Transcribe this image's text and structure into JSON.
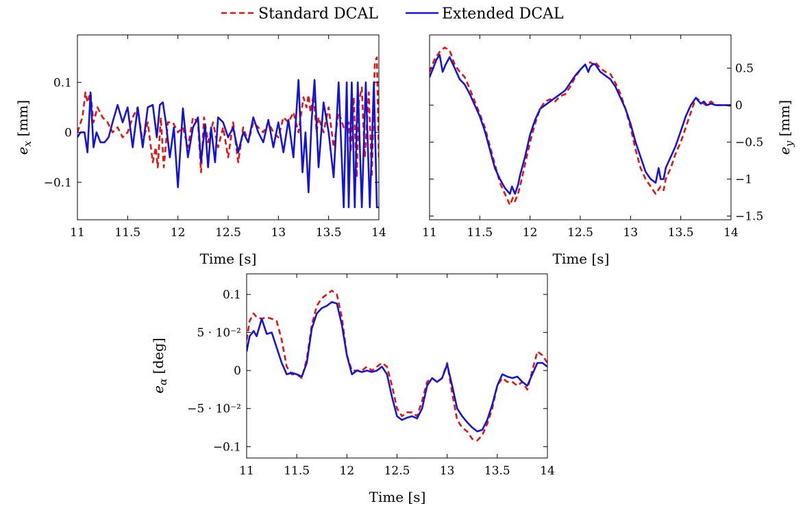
{
  "legend": {
    "entries": [
      {
        "label": "Standard DCAL",
        "color": "#e8120c",
        "dash": true
      },
      {
        "label": "Extended DCAL",
        "color": "#1414d8",
        "dash": false
      }
    ]
  },
  "chart_data": [
    {
      "type": "line",
      "id": "ex",
      "xlabel": "Time [s]",
      "ylabel_main": "e",
      "ylabel_sub": "x",
      "ylabel_unit": "[mm]",
      "xlim": [
        11,
        14
      ],
      "ylim": [
        -0.175,
        0.195
      ],
      "xticks": [
        11,
        11.5,
        12,
        12.5,
        13,
        13.5,
        14
      ],
      "xtick_labels": [
        "11",
        "11.5",
        "12",
        "12.5",
        "13",
        "13.5",
        "14"
      ],
      "yticks": [
        -0.1,
        0,
        0.1
      ],
      "ytick_labels": [
        "−0.1",
        "0",
        "0.1"
      ],
      "grid": false,
      "series": [
        {
          "name": "Standard DCAL",
          "color": "#e8120c",
          "dash": true,
          "x": [
            11,
            11.05,
            11.08,
            11.1,
            11.13,
            11.16,
            11.2,
            11.25,
            11.3,
            11.35,
            11.4,
            11.45,
            11.5,
            11.55,
            11.6,
            11.65,
            11.7,
            11.75,
            11.78,
            11.8,
            11.83,
            11.86,
            11.9,
            11.95,
            12,
            12.05,
            12.1,
            12.15,
            12.2,
            12.23,
            12.26,
            12.3,
            12.35,
            12.4,
            12.45,
            12.5,
            12.55,
            12.6,
            12.65,
            12.7,
            12.75,
            12.8,
            12.85,
            12.9,
            12.95,
            13,
            13.05,
            13.1,
            13.15,
            13.2,
            13.25,
            13.28,
            13.3,
            13.32,
            13.35,
            13.38,
            13.4,
            13.45,
            13.5,
            13.55,
            13.6,
            13.65,
            13.7,
            13.72,
            13.75,
            13.78,
            13.8,
            13.83,
            13.86,
            13.9,
            13.93,
            13.96,
            13.98,
            14
          ],
          "y": [
            0.0,
            0.03,
            0.08,
            0.06,
            0.08,
            0.02,
            0.05,
            0.03,
            0.02,
            0.0,
            0.01,
            -0.01,
            0.0,
            0.03,
            0.05,
            -0.02,
            0.02,
            -0.06,
            -0.03,
            -0.07,
            0.03,
            -0.07,
            0.02,
            0.02,
            0.0,
            0.01,
            -0.03,
            0.03,
            0.02,
            -0.08,
            0.03,
            -0.02,
            0.02,
            -0.03,
            0.01,
            -0.05,
            0.02,
            -0.06,
            0.01,
            -0.02,
            0.02,
            0.01,
            0.0,
            0.02,
            0.0,
            -0.01,
            0.03,
            0.02,
            0.04,
            0.0,
            0.07,
            0.05,
            0.075,
            0.04,
            0.075,
            0.0,
            0.03,
            0.0,
            0.05,
            -0.03,
            0.04,
            0.01,
            0.02,
            -0.04,
            0.07,
            -0.09,
            0.06,
            0.09,
            -0.05,
            0.08,
            -0.09,
            0.14,
            0.15,
            -0.05
          ]
        },
        {
          "name": "Extended DCAL",
          "color": "#1414d8",
          "dash": false,
          "x": [
            11,
            11.03,
            11.07,
            11.1,
            11.13,
            11.16,
            11.19,
            11.23,
            11.27,
            11.31,
            11.35,
            11.4,
            11.45,
            11.5,
            11.55,
            11.6,
            11.65,
            11.7,
            11.75,
            11.79,
            11.82,
            11.85,
            11.88,
            11.92,
            11.96,
            12,
            12.05,
            12.1,
            12.15,
            12.2,
            12.23,
            12.27,
            12.3,
            12.33,
            12.37,
            12.4,
            12.45,
            12.5,
            12.55,
            12.6,
            12.65,
            12.7,
            12.75,
            12.8,
            12.85,
            12.9,
            12.95,
            13,
            13.05,
            13.1,
            13.15,
            13.2,
            13.24,
            13.27,
            13.3,
            13.33,
            13.36,
            13.4,
            13.45,
            13.5,
            13.55,
            13.6,
            13.65,
            13.68,
            13.7,
            13.73,
            13.76,
            13.79,
            13.83,
            13.87,
            13.91,
            13.95,
            13.98,
            14
          ],
          "y": [
            -0.01,
            0.0,
            0.0,
            -0.04,
            0.08,
            -0.03,
            0.0,
            -0.02,
            -0.02,
            -0.01,
            0.02,
            0.055,
            0.02,
            0.05,
            -0.03,
            0.05,
            -0.03,
            0.05,
            0.055,
            -0.01,
            0.055,
            0.06,
            0.02,
            -0.05,
            0.01,
            -0.11,
            0.048,
            -0.05,
            0.01,
            0.03,
            -0.06,
            0.015,
            -0.07,
            0.01,
            -0.06,
            0.03,
            0.02,
            -0.01,
            0.01,
            -0.04,
            0.0,
            -0.02,
            0.03,
            0.0,
            -0.02,
            0.025,
            -0.03,
            0.02,
            -0.04,
            0.025,
            -0.05,
            0.105,
            -0.08,
            0.0,
            -0.12,
            0.02,
            0.105,
            -0.07,
            0.06,
            0.0,
            -0.09,
            0.1,
            -0.15,
            0.1,
            -0.15,
            0.1,
            -0.15,
            0.1,
            -0.15,
            0.1,
            -0.15,
            0.1,
            -0.15,
            -0.15
          ]
        }
      ]
    },
    {
      "type": "line",
      "id": "ey",
      "xlabel": "Time [s]",
      "ylabel_main": "e",
      "ylabel_sub": "y",
      "ylabel_unit": "[mm]",
      "xlim": [
        11,
        14
      ],
      "ylim": [
        -1.55,
        0.95
      ],
      "xticks": [
        11,
        11.5,
        12,
        12.5,
        13,
        13.5,
        14
      ],
      "xtick_labels": [
        "11",
        "11.5",
        "12",
        "12.5",
        "13",
        "13.5",
        "14"
      ],
      "yticks": [
        -1.5,
        -1,
        -0.5,
        0,
        0.5
      ],
      "ytick_labels": [
        "−1.5",
        "−1",
        "−0.5",
        "0",
        "0.5"
      ],
      "grid": false,
      "series": [
        {
          "name": "Standard DCAL",
          "color": "#e8120c",
          "dash": true,
          "x": [
            11,
            11.05,
            11.1,
            11.15,
            11.2,
            11.25,
            11.3,
            11.35,
            11.4,
            11.45,
            11.5,
            11.55,
            11.6,
            11.65,
            11.7,
            11.75,
            11.8,
            11.83,
            11.85,
            11.88,
            11.9,
            11.95,
            12,
            12.05,
            12.1,
            12.15,
            12.2,
            12.25,
            12.3,
            12.35,
            12.4,
            12.45,
            12.5,
            12.55,
            12.6,
            12.63,
            12.65,
            12.7,
            12.75,
            12.8,
            12.85,
            12.9,
            12.95,
            13,
            13.05,
            13.1,
            13.15,
            13.2,
            13.25,
            13.3,
            13.33,
            13.35,
            13.4,
            13.45,
            13.5,
            13.55,
            13.6,
            13.65,
            13.7,
            13.75,
            13.8,
            13.85,
            13.9,
            13.95,
            14
          ],
          "y": [
            0.45,
            0.62,
            0.72,
            0.78,
            0.74,
            0.55,
            0.45,
            0.38,
            0.22,
            0.05,
            -0.12,
            -0.3,
            -0.55,
            -0.8,
            -1.05,
            -1.2,
            -1.35,
            -1.25,
            -1.3,
            -1.2,
            -1.1,
            -0.8,
            -0.5,
            -0.25,
            -0.05,
            0.05,
            0.08,
            0.05,
            0.12,
            0.15,
            0.25,
            0.38,
            0.48,
            0.55,
            0.58,
            0.55,
            0.58,
            0.5,
            0.45,
            0.42,
            0.3,
            0.15,
            -0.05,
            -0.3,
            -0.6,
            -0.85,
            -1.0,
            -1.1,
            -1.2,
            -1.1,
            -1.15,
            -1.0,
            -0.85,
            -0.65,
            -0.5,
            -0.3,
            -0.1,
            0.1,
            0.05,
            0.0,
            0.05,
            0.0,
            0.0,
            0.0,
            -0.01
          ]
        },
        {
          "name": "Extended DCAL",
          "color": "#1414d8",
          "dash": false,
          "x": [
            11,
            11.03,
            11.07,
            11.1,
            11.13,
            11.16,
            11.2,
            11.25,
            11.3,
            11.35,
            11.4,
            11.45,
            11.5,
            11.55,
            11.6,
            11.65,
            11.7,
            11.75,
            11.8,
            11.82,
            11.85,
            11.88,
            11.9,
            11.95,
            12,
            12.05,
            12.1,
            12.15,
            12.2,
            12.25,
            12.3,
            12.35,
            12.4,
            12.45,
            12.5,
            12.55,
            12.58,
            12.6,
            12.63,
            12.65,
            12.7,
            12.75,
            12.8,
            12.85,
            12.9,
            12.95,
            13,
            13.05,
            13.1,
            13.15,
            13.2,
            13.25,
            13.28,
            13.3,
            13.33,
            13.35,
            13.4,
            13.45,
            13.5,
            13.55,
            13.6,
            13.65,
            13.68,
            13.7,
            13.73,
            13.76,
            13.8,
            13.85,
            13.9,
            13.95,
            14
          ],
          "y": [
            0.38,
            0.48,
            0.62,
            0.68,
            0.45,
            0.55,
            0.65,
            0.5,
            0.35,
            0.28,
            0.15,
            0.0,
            -0.15,
            -0.35,
            -0.6,
            -0.85,
            -1.0,
            -1.12,
            -1.2,
            -1.1,
            -1.2,
            -1.08,
            -0.95,
            -0.7,
            -0.4,
            -0.2,
            -0.05,
            0.0,
            0.05,
            0.1,
            0.15,
            0.2,
            0.3,
            0.4,
            0.48,
            0.55,
            0.45,
            0.52,
            0.56,
            0.55,
            0.45,
            0.4,
            0.35,
            0.25,
            0.1,
            -0.05,
            -0.25,
            -0.5,
            -0.7,
            -0.9,
            -1.0,
            -1.05,
            -0.85,
            -1.0,
            -1.0,
            -0.85,
            -0.7,
            -0.55,
            -0.35,
            -0.15,
            0.0,
            0.1,
            0.05,
            0.02,
            0.05,
            0.0,
            0.02,
            0.0,
            0.0,
            0.0,
            0.0
          ]
        }
      ]
    },
    {
      "type": "line",
      "id": "ealpha",
      "xlabel": "Time [s]",
      "ylabel_main": "e",
      "ylabel_sub": "α",
      "ylabel_unit": "[deg]",
      "xlim": [
        11,
        14
      ],
      "ylim": [
        -0.115,
        0.127
      ],
      "xticks": [
        11,
        11.5,
        12,
        12.5,
        13,
        13.5,
        14
      ],
      "xtick_labels": [
        "11",
        "11.5",
        "12",
        "12.5",
        "13",
        "13.5",
        "14"
      ],
      "yticks": [
        -0.1,
        -0.05,
        0,
        0.05,
        0.1
      ],
      "ytick_labels": [
        "−0.1",
        "−5 · 10⁻²",
        "0",
        "5 · 10⁻²",
        "0.1"
      ],
      "grid": false,
      "series": [
        {
          "name": "Standard DCAL",
          "color": "#e8120c",
          "dash": true,
          "x": [
            11,
            11.03,
            11.07,
            11.1,
            11.15,
            11.2,
            11.25,
            11.3,
            11.35,
            11.4,
            11.45,
            11.5,
            11.55,
            11.6,
            11.65,
            11.7,
            11.75,
            11.8,
            11.85,
            11.9,
            11.95,
            12,
            12.05,
            12.1,
            12.15,
            12.2,
            12.25,
            12.3,
            12.35,
            12.4,
            12.45,
            12.5,
            12.55,
            12.6,
            12.65,
            12.7,
            12.75,
            12.8,
            12.85,
            12.9,
            12.95,
            13,
            13.05,
            13.1,
            13.15,
            13.2,
            13.25,
            13.3,
            13.35,
            13.4,
            13.45,
            13.5,
            13.55,
            13.6,
            13.65,
            13.7,
            13.75,
            13.8,
            13.85,
            13.9,
            13.95,
            14
          ],
          "y": [
            0.04,
            0.065,
            0.075,
            0.07,
            0.068,
            0.07,
            0.068,
            0.065,
            0.04,
            0.005,
            -0.005,
            -0.005,
            -0.01,
            0.015,
            0.06,
            0.085,
            0.095,
            0.1,
            0.105,
            0.1,
            0.07,
            0.02,
            0.0,
            0.0,
            0.0,
            0.005,
            0.0,
            0.005,
            0.01,
            0.005,
            -0.02,
            -0.05,
            -0.06,
            -0.055,
            -0.055,
            -0.06,
            -0.04,
            -0.015,
            -0.01,
            -0.015,
            -0.01,
            0.01,
            -0.03,
            -0.065,
            -0.075,
            -0.08,
            -0.09,
            -0.092,
            -0.085,
            -0.07,
            -0.05,
            -0.02,
            -0.01,
            -0.015,
            -0.015,
            -0.02,
            -0.015,
            -0.025,
            0.0,
            0.025,
            0.02,
            0.01
          ]
        },
        {
          "name": "Extended DCAL",
          "color": "#1414d8",
          "dash": false,
          "x": [
            11,
            11.03,
            11.07,
            11.1,
            11.15,
            11.2,
            11.25,
            11.3,
            11.35,
            11.4,
            11.45,
            11.5,
            11.55,
            11.6,
            11.65,
            11.7,
            11.75,
            11.8,
            11.85,
            11.9,
            11.95,
            12,
            12.05,
            12.1,
            12.15,
            12.2,
            12.25,
            12.3,
            12.35,
            12.4,
            12.45,
            12.5,
            12.55,
            12.6,
            12.65,
            12.7,
            12.75,
            12.8,
            12.85,
            12.9,
            12.95,
            13,
            13.05,
            13.1,
            13.15,
            13.2,
            13.25,
            13.3,
            13.35,
            13.4,
            13.45,
            13.5,
            13.55,
            13.6,
            13.65,
            13.7,
            13.75,
            13.8,
            13.85,
            13.9,
            13.95,
            14
          ],
          "y": [
            0.025,
            0.045,
            0.052,
            0.045,
            0.068,
            0.048,
            0.05,
            0.03,
            0.01,
            -0.005,
            -0.003,
            -0.005,
            -0.008,
            0.01,
            0.055,
            0.075,
            0.082,
            0.085,
            0.09,
            0.088,
            0.06,
            0.02,
            -0.005,
            0.0,
            -0.002,
            0.0,
            -0.002,
            0.0,
            0.005,
            -0.005,
            -0.035,
            -0.06,
            -0.065,
            -0.062,
            -0.06,
            -0.063,
            -0.05,
            -0.02,
            -0.01,
            -0.015,
            -0.01,
            0.008,
            -0.02,
            -0.05,
            -0.06,
            -0.068,
            -0.075,
            -0.08,
            -0.078,
            -0.065,
            -0.045,
            -0.02,
            -0.005,
            -0.008,
            -0.01,
            -0.008,
            -0.015,
            -0.02,
            -0.005,
            0.01,
            0.01,
            0.005
          ]
        }
      ]
    }
  ]
}
